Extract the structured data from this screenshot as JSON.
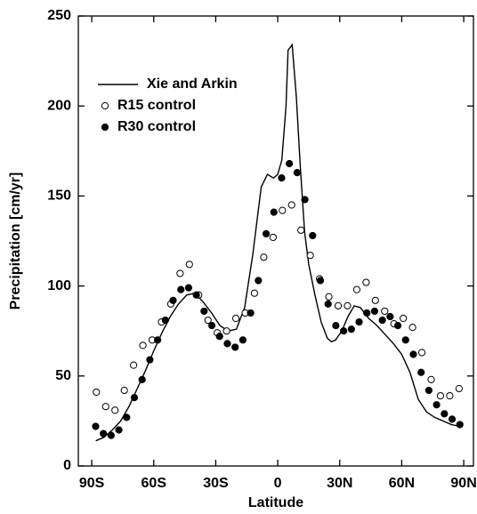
{
  "chart_data": {
    "type": "line",
    "x_label": "Latitude",
    "y_label": "Precipitation [cm/yr]",
    "xlim": [
      -96.5,
      94.7
    ],
    "ylim": [
      0,
      250
    ],
    "xticks": [
      {
        "value": -90,
        "label": "90S"
      },
      {
        "value": -60,
        "label": "60S"
      },
      {
        "value": -30,
        "label": "30S"
      },
      0,
      {
        "value": 30,
        "label": "30N"
      },
      {
        "value": 60,
        "label": "60N"
      },
      {
        "value": 90,
        "label": "90N"
      }
    ],
    "yticks": [
      0,
      50,
      100,
      150,
      200,
      250
    ],
    "legend": "upper left",
    "series": [
      {
        "name": "Xie and Arkin",
        "color": "#000000",
        "style": "line",
        "x": [
          -88,
          -84,
          -80,
          -76,
          -72,
          -68,
          -64,
          -60,
          -56,
          -52,
          -48,
          -44,
          -40,
          -36,
          -32,
          -28,
          -24,
          -20,
          -16,
          -12,
          -8,
          -5,
          -2,
          0,
          2,
          4,
          5,
          7,
          9,
          11,
          13,
          15,
          18,
          21,
          24,
          26,
          28,
          31,
          34,
          37,
          40,
          44,
          48,
          52,
          56,
          60,
          64,
          68,
          72,
          76,
          80,
          84,
          88
        ],
        "values": [
          14,
          16,
          20,
          25,
          33,
          43,
          53,
          64,
          74,
          83,
          90,
          95,
          96,
          91,
          85,
          78,
          75,
          76,
          88,
          118,
          155,
          162,
          160,
          162,
          170,
          200,
          231,
          234,
          205,
          165,
          130,
          112,
          95,
          80,
          71,
          69,
          70,
          75,
          83,
          89,
          88,
          82,
          78,
          73,
          68,
          62,
          52,
          37,
          30,
          27,
          25,
          23,
          22
        ]
      },
      {
        "name": "R15 control",
        "color": "#000000",
        "style": "open-circle",
        "x": [
          -87.75,
          -83.25,
          -78.75,
          -74.25,
          -69.75,
          -65.25,
          -60.75,
          -56.25,
          -51.75,
          -47.25,
          -42.75,
          -38.25,
          -33.75,
          -29.25,
          -24.75,
          -20.25,
          -15.75,
          -11.25,
          -6.75,
          -2.25,
          2.25,
          6.75,
          11.25,
          15.75,
          20.25,
          24.75,
          29.25,
          33.75,
          38.25,
          42.75,
          47.25,
          51.75,
          56.25,
          60.75,
          65.25,
          69.75,
          74.25,
          78.75,
          83.25,
          87.75
        ],
        "values": [
          41,
          33,
          31,
          42,
          56,
          67,
          70,
          80,
          90,
          107,
          112,
          95,
          81,
          74,
          75,
          82,
          85,
          96,
          116,
          127,
          142,
          145,
          131,
          117,
          104,
          94,
          89,
          89,
          98,
          102,
          92,
          86,
          79,
          82,
          77,
          63,
          48,
          39,
          39,
          43
        ]
      },
      {
        "name": "R30 control",
        "color": "#000000",
        "style": "filled-circle",
        "x": [
          -88.125,
          -84.375,
          -80.625,
          -76.875,
          -73.125,
          -69.375,
          -65.625,
          -61.875,
          -58.125,
          -54.375,
          -50.625,
          -46.875,
          -43.125,
          -39.375,
          -35.625,
          -31.875,
          -28.125,
          -24.375,
          -20.625,
          -16.875,
          -13.125,
          -9.375,
          -5.625,
          -1.875,
          1.875,
          5.625,
          9.375,
          13.125,
          16.875,
          20.625,
          24.375,
          28.125,
          31.875,
          35.625,
          39.375,
          43.125,
          46.875,
          50.625,
          54.375,
          58.125,
          61.875,
          65.625,
          69.375,
          73.125,
          76.875,
          80.625,
          84.375,
          88.125
        ],
        "values": [
          22,
          18,
          17,
          20,
          27,
          38,
          48,
          59,
          70,
          81,
          92,
          98,
          99,
          95,
          86,
          78,
          72,
          68,
          66,
          70,
          85,
          103,
          129,
          141,
          160,
          168,
          163,
          148,
          128,
          103,
          90,
          78,
          75,
          76,
          80,
          85,
          86,
          81,
          83,
          78,
          70,
          62,
          52,
          42,
          34,
          29,
          26,
          23
        ]
      }
    ]
  }
}
